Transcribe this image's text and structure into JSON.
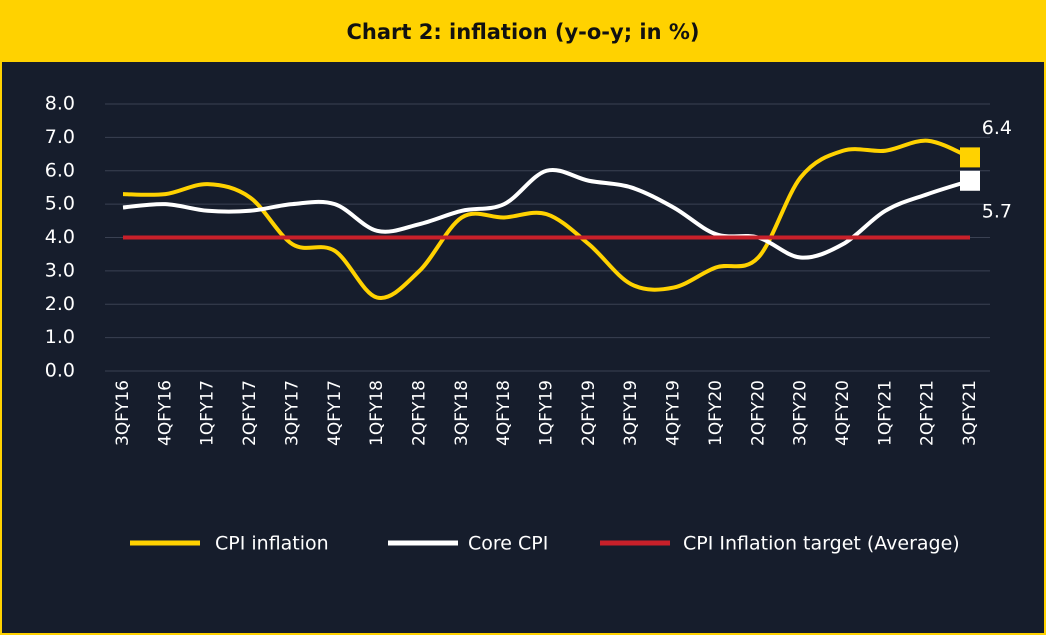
{
  "chart_data": {
    "type": "line",
    "title": "Chart 2: inflation (y-o-y; in %)",
    "categories": [
      "3QFY16",
      "4QFY16",
      "1QFY17",
      "2QFY17",
      "3QFY17",
      "4QFY17",
      "1QFY18",
      "2QFY18",
      "3QFY18",
      "4QFY18",
      "1QFY19",
      "2QFY19",
      "3QFY19",
      "4QFY19",
      "1QFY20",
      "2QFY20",
      "3QFY20",
      "4QFY20",
      "1QFY21",
      "2QFY21",
      "3QFY21"
    ],
    "series": [
      {
        "name": "CPI inflation",
        "color": "#ffd200",
        "values": [
          5.3,
          5.3,
          5.6,
          5.2,
          3.8,
          3.6,
          2.2,
          3.0,
          4.6,
          4.6,
          4.7,
          3.8,
          2.6,
          2.5,
          3.1,
          3.4,
          5.8,
          6.6,
          6.6,
          6.9,
          6.4
        ]
      },
      {
        "name": "Core CPI",
        "color": "#ffffff",
        "values": [
          4.9,
          5.0,
          4.8,
          4.8,
          5.0,
          5.0,
          4.2,
          4.4,
          4.8,
          5.0,
          6.0,
          5.7,
          5.5,
          4.9,
          4.1,
          4.0,
          3.4,
          3.8,
          4.8,
          5.3,
          5.7
        ]
      },
      {
        "name": "CPI Inflation target (Average)",
        "color": "#c8202a",
        "values": [
          4,
          4,
          4,
          4,
          4,
          4,
          4,
          4,
          4,
          4,
          4,
          4,
          4,
          4,
          4,
          4,
          4,
          4,
          4,
          4,
          4
        ]
      }
    ],
    "ylim": [
      0,
      8
    ],
    "yticks": [
      {
        "value": 0,
        "label": "0.0"
      },
      {
        "value": 1,
        "label": "1.0"
      },
      {
        "value": 2,
        "label": "2.0"
      },
      {
        "value": 3,
        "label": "3.0"
      },
      {
        "value": 4,
        "label": "4.0"
      },
      {
        "value": 5,
        "label": "5.0"
      },
      {
        "value": 6,
        "label": "6.0"
      },
      {
        "value": 7,
        "label": "7.0"
      },
      {
        "value": 8,
        "label": "8.0"
      }
    ],
    "grid": true
  }
}
